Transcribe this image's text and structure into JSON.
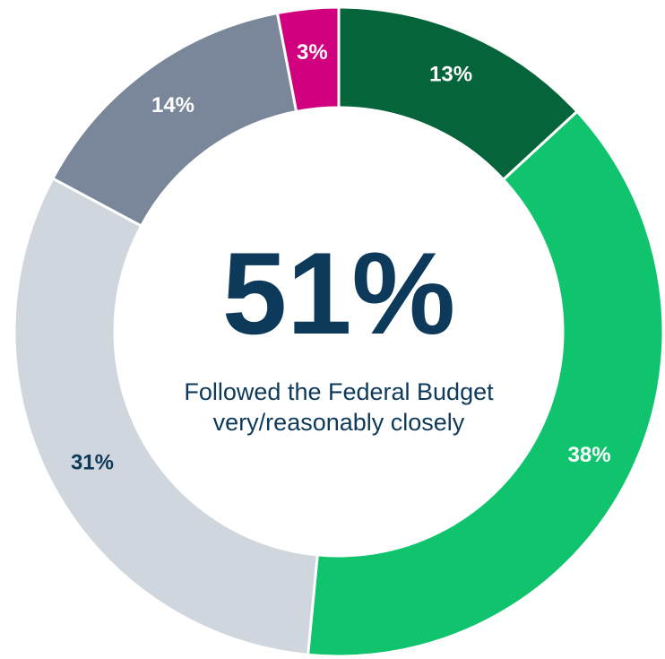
{
  "chart_data": {
    "type": "pie",
    "values": [
      13,
      38,
      31,
      14,
      3
    ],
    "value_labels": [
      "13%",
      "38%",
      "31%",
      "14%",
      "3%"
    ],
    "colors": [
      "#06643a",
      "#10c46e",
      "#d0d6dd",
      "#7a879a",
      "#d1007f"
    ],
    "label_colors": [
      "#ffffff",
      "#ffffff",
      "#0d3a5a",
      "#ffffff",
      "#ffffff"
    ],
    "center_value": "51%",
    "center_caption": "Followed the Federal Budget very/reasonably closely"
  }
}
